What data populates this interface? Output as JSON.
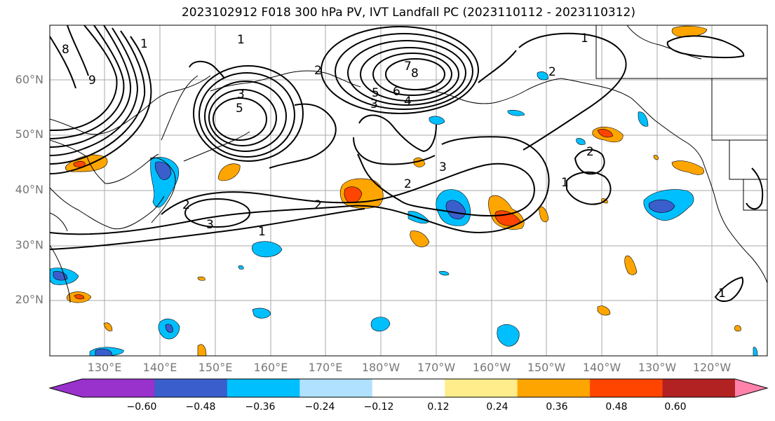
{
  "title": "2023102912 F018 300 hPa PV, IVT Landfall PC (2023110112 - 2023110312)",
  "lat_labels": [
    "60°N",
    "50°N",
    "40°N",
    "30°N",
    "20°N"
  ],
  "lon_labels": [
    "130°E",
    "140°E",
    "150°E",
    "160°E",
    "170°E",
    "180°W",
    "170°W",
    "160°W",
    "150°W",
    "140°W",
    "130°W",
    "120°W"
  ],
  "contour_labels": [
    "1",
    "1",
    "1",
    "1",
    "1",
    "1",
    "2",
    "2",
    "2",
    "2",
    "2",
    "2",
    "3",
    "3",
    "3",
    "3",
    "4",
    "5",
    "5",
    "6",
    "7",
    "8",
    "8",
    "9"
  ],
  "colorbar": {
    "ticks": [
      "−0.60",
      "−0.48",
      "−0.36",
      "−0.24",
      "−0.12",
      "0.12",
      "0.24",
      "0.36",
      "0.48",
      "0.60"
    ],
    "colors": [
      "#9932cc",
      "#00008b",
      "#3a5fcd",
      "#00bfff",
      "#b0e2ff",
      "#ffffff",
      "#ffec8b",
      "#ffa500",
      "#ff4500",
      "#b22222",
      "#ff82ab"
    ]
  }
}
